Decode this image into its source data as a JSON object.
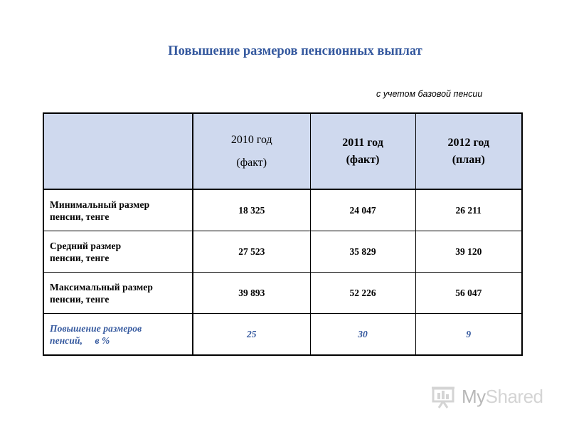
{
  "title": "Повышение размеров пенсионных выплат",
  "subtitle": "с учетом базовой пенсии",
  "table": {
    "headers": [
      {
        "line1": "2010 год",
        "line2": "(факт)"
      },
      {
        "line1": "2011 год",
        "line2": "(факт)"
      },
      {
        "line1": "2012 год",
        "line2": "(план)"
      }
    ],
    "rows": [
      {
        "label1": "Минимальный размер",
        "label2": "пенсии,  тенге",
        "values": [
          "18 325",
          "24 047",
          "26 211"
        ]
      },
      {
        "label1": "Средний размер",
        "label2": "пенсии,  тенге",
        "values": [
          "27 523",
          "35 829",
          "39 120"
        ]
      },
      {
        "label1": "Максимальный размер",
        "label2": "пенсии,  тенге",
        "values": [
          "39 893",
          "52 226",
          "56 047"
        ]
      },
      {
        "label1": "Повышение размеров",
        "label2": "пенсий,     в %",
        "values": [
          "25",
          "30",
          "9"
        ]
      }
    ]
  },
  "watermark": {
    "text_a": "My",
    "text_b": "Shared",
    "icon": "presentation-board-icon",
    "color": "#d4d4d4"
  },
  "colors": {
    "title": "#34589e",
    "header_bg": "#cfd9ee",
    "accent_row": "#34589e"
  }
}
